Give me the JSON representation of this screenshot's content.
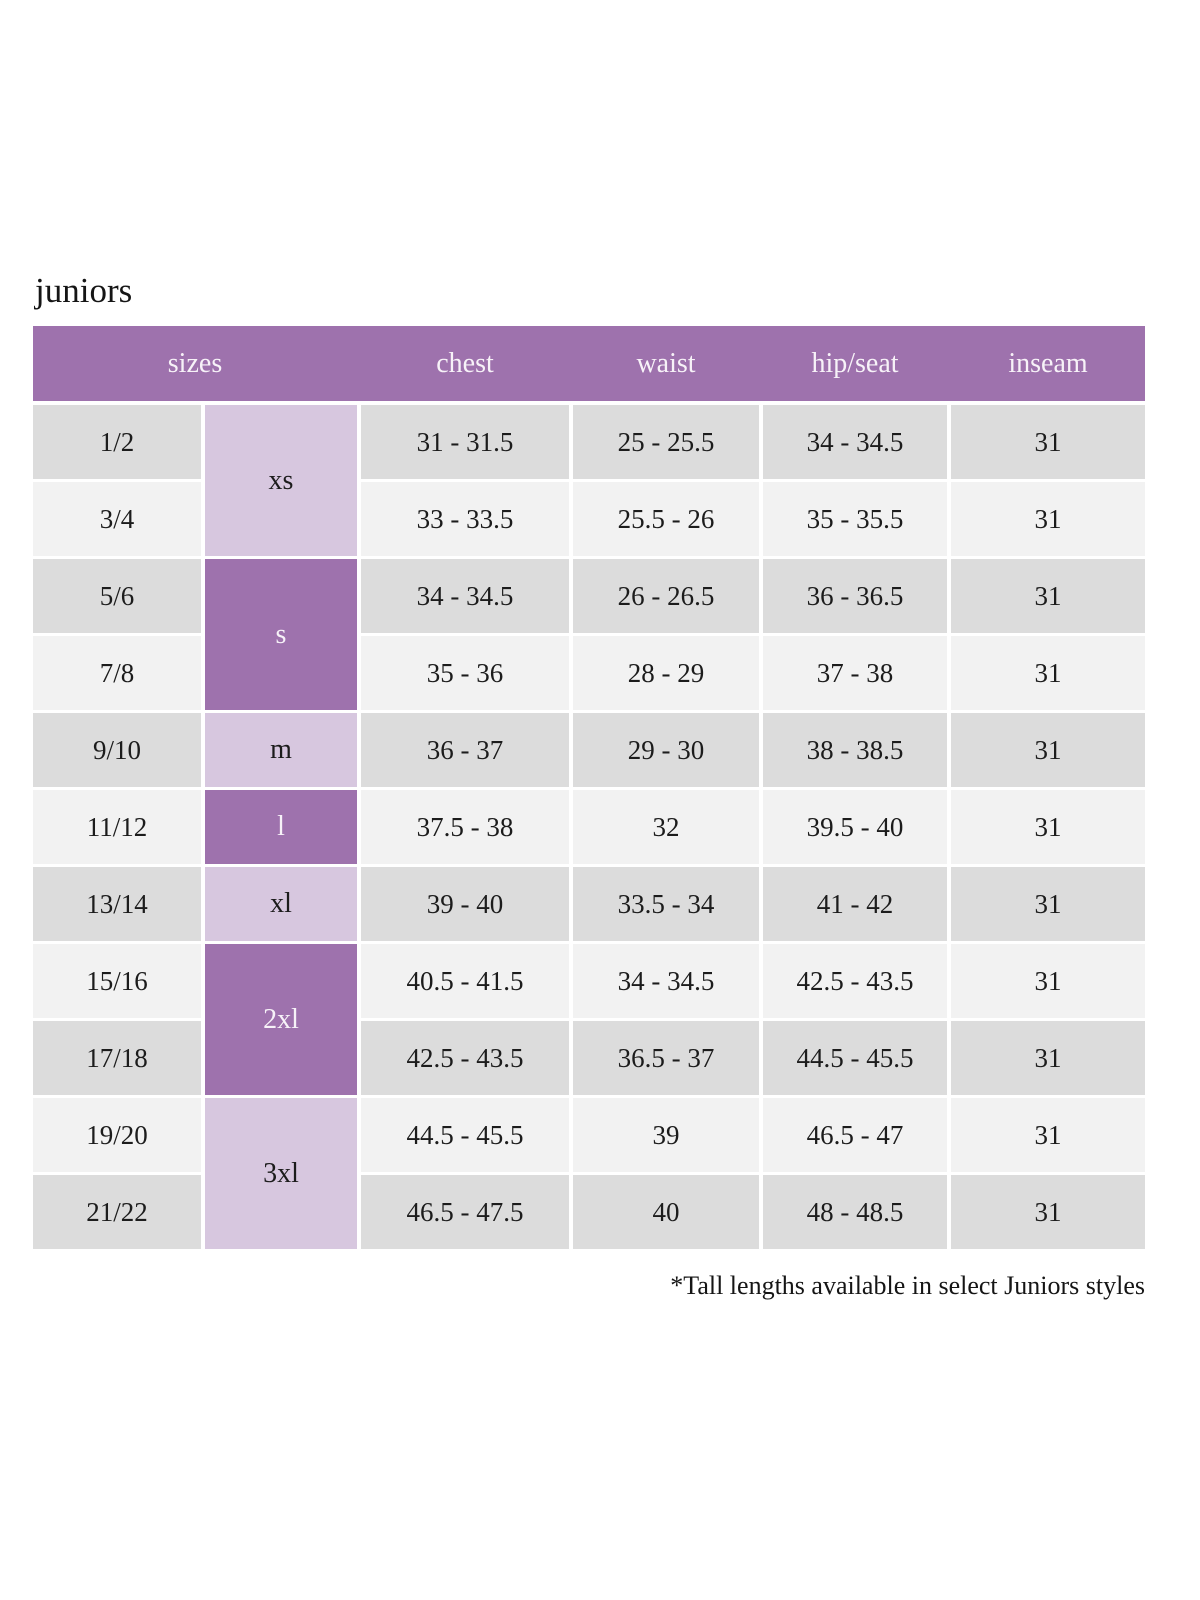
{
  "page": {
    "title": "juniors",
    "footnote": "*Tall lengths available in select Juniors styles"
  },
  "colors": {
    "header_bg": "#9e72ad",
    "dark_size_cell_bg": "#9e72ad",
    "light_size_cell_bg": "#d7c7df",
    "row_dark_bg": "#dcdcdc",
    "row_light_bg": "#f2f2f2",
    "header_text": "#f7f2f8",
    "body_text": "#1c1c1c"
  },
  "table": {
    "headers": [
      "sizes",
      "chest",
      "waist",
      "hip/seat",
      "inseam"
    ],
    "size_groups": [
      {
        "label": "xs",
        "shade": "light",
        "rows_spanned": 2
      },
      {
        "label": "s",
        "shade": "dark",
        "rows_spanned": 2
      },
      {
        "label": "m",
        "shade": "light",
        "rows_spanned": 1
      },
      {
        "label": "l",
        "shade": "dark",
        "rows_spanned": 1
      },
      {
        "label": "xl",
        "shade": "light",
        "rows_spanned": 1
      },
      {
        "label": "2xl",
        "shade": "dark",
        "rows_spanned": 2
      },
      {
        "label": "3xl",
        "shade": "light",
        "rows_spanned": 2
      }
    ],
    "rows": [
      {
        "size": "1/2",
        "chest": "31 - 31.5",
        "waist": "25 - 25.5",
        "hip_seat": "34 - 34.5",
        "inseam": "31"
      },
      {
        "size": "3/4",
        "chest": "33 - 33.5",
        "waist": "25.5 - 26",
        "hip_seat": "35 - 35.5",
        "inseam": "31"
      },
      {
        "size": "5/6",
        "chest": "34 - 34.5",
        "waist": "26 - 26.5",
        "hip_seat": "36 - 36.5",
        "inseam": "31"
      },
      {
        "size": "7/8",
        "chest": "35 - 36",
        "waist": "28 - 29",
        "hip_seat": "37 - 38",
        "inseam": "31"
      },
      {
        "size": "9/10",
        "chest": "36 - 37",
        "waist": "29 - 30",
        "hip_seat": "38 - 38.5",
        "inseam": "31"
      },
      {
        "size": "11/12",
        "chest": "37.5 - 38",
        "waist": "32",
        "hip_seat": "39.5 - 40",
        "inseam": "31"
      },
      {
        "size": "13/14",
        "chest": "39 - 40",
        "waist": "33.5 - 34",
        "hip_seat": "41 - 42",
        "inseam": "31"
      },
      {
        "size": "15/16",
        "chest": "40.5 - 41.5",
        "waist": "34 - 34.5",
        "hip_seat": "42.5 - 43.5",
        "inseam": "31"
      },
      {
        "size": "17/18",
        "chest": "42.5 - 43.5",
        "waist": "36.5 - 37",
        "hip_seat": "44.5 - 45.5",
        "inseam": "31"
      },
      {
        "size": "19/20",
        "chest": "44.5 - 45.5",
        "waist": "39",
        "hip_seat": "46.5 - 47",
        "inseam": "31"
      },
      {
        "size": "21/22",
        "chest": "46.5 - 47.5",
        "waist": "40",
        "hip_seat": "48 - 48.5",
        "inseam": "31"
      }
    ]
  }
}
